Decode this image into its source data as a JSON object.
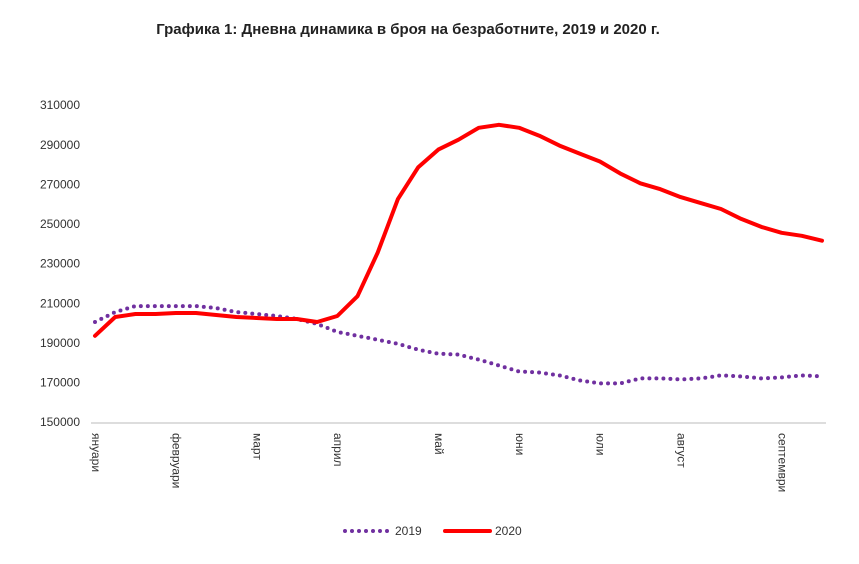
{
  "chart_data": {
    "type": "line",
    "title": "Графика 1: Дневна динамика в броя на безработните, 2019 и 2020 г.",
    "categories": [
      "януари",
      null,
      null,
      null,
      "февруари",
      null,
      null,
      null,
      "март",
      null,
      null,
      null,
      "април",
      null,
      null,
      null,
      null,
      "май",
      null,
      null,
      null,
      "юни",
      null,
      null,
      null,
      "юли",
      null,
      null,
      null,
      "август",
      null,
      null,
      null,
      null,
      "септември",
      null,
      null
    ],
    "series": [
      {
        "name": "2019",
        "color": "#7030a0",
        "style": "dotted",
        "values": [
          201000,
          206000,
          209000,
          209000,
          209000,
          209000,
          208000,
          206000,
          205000,
          204000,
          202500,
          200000,
          196000,
          194000,
          192000,
          190000,
          187000,
          185000,
          184500,
          182000,
          179000,
          176000,
          175500,
          174000,
          171500,
          170000,
          170000,
          172500,
          172500,
          172000,
          172500,
          174000,
          173500,
          172500,
          173000,
          174000,
          173500
        ]
      },
      {
        "name": "2020",
        "color": "#ff0000",
        "style": "solid",
        "values": [
          194000,
          203500,
          205000,
          205000,
          205500,
          205500,
          204500,
          203500,
          203000,
          202500,
          202500,
          201000,
          204000,
          214000,
          236000,
          263000,
          279000,
          288000,
          293000,
          299000,
          300500,
          299000,
          295000,
          290000,
          286000,
          282000,
          276000,
          271000,
          268000,
          264000,
          261000,
          258000,
          253000,
          249000,
          246000,
          244500,
          242000
        ]
      }
    ],
    "ylim": [
      150000,
      310000
    ],
    "yticks": [
      150000,
      170000,
      190000,
      210000,
      230000,
      250000,
      270000,
      290000,
      310000
    ]
  }
}
